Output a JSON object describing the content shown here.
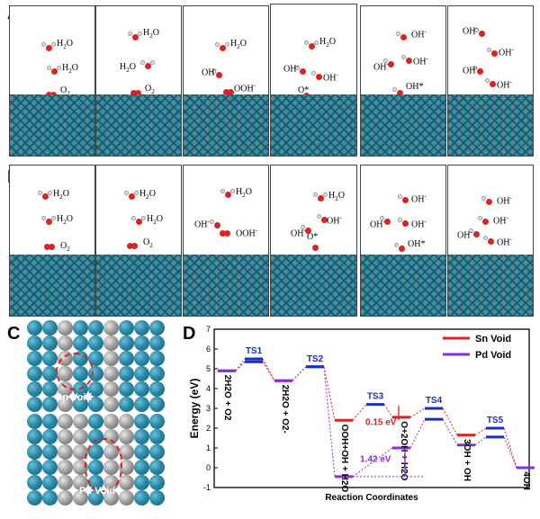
{
  "panels": {
    "a": "A",
    "b": "B",
    "c": "C",
    "d": "D"
  },
  "row_a": [
    {
      "labels": [
        "H2O",
        "H2O",
        "O2"
      ]
    },
    {
      "labels": [
        "H2O",
        "H2O",
        "O2"
      ]
    },
    {
      "labels": [
        "H2O",
        "OH-",
        "OOH-"
      ]
    },
    {
      "labels": [
        "H2O",
        "OH-",
        "OH-",
        "O*"
      ]
    },
    {
      "labels": [
        "OH-",
        "OH-",
        "OH-",
        "OH*"
      ]
    },
    {
      "labels": [
        "OH-",
        "OH-",
        "OH-",
        "OH-"
      ]
    }
  ],
  "row_b": [
    {
      "labels": [
        "H2O",
        "H2O",
        "O2"
      ]
    },
    {
      "labels": [
        "H2O",
        "H2O",
        "O2"
      ]
    },
    {
      "labels": [
        "H2O",
        "OH-",
        "OOH-"
      ]
    },
    {
      "labels": [
        "H2O",
        "OH-",
        "OH-",
        "O*"
      ]
    },
    {
      "labels": [
        "OH-",
        "OH-",
        "OH-",
        "OH*"
      ]
    },
    {
      "labels": [
        "OH-",
        "OH-",
        "OH-",
        "OH-"
      ]
    }
  ],
  "panel_c": {
    "sn_label": "Sn Void",
    "pd_label": "Pd Void"
  },
  "chart_data": {
    "type": "line",
    "ylabel": "Energy (eV)",
    "xlabel": "Reaction Coordinates",
    "ylim": [
      -1,
      7
    ],
    "yticks": [
      -1,
      0,
      1,
      2,
      3,
      4,
      5,
      6,
      7
    ],
    "legend_position": "top-right",
    "series": [
      {
        "name": "Sn Void",
        "color": "#e02020",
        "levels": [
          4.9,
          5.5,
          4.4,
          5.1,
          2.4,
          3.2,
          2.55,
          3.0,
          1.65,
          2.0,
          0.0
        ]
      },
      {
        "name": "Pd Void",
        "color": "#8a2be2",
        "levels": [
          4.9,
          5.35,
          4.4,
          5.1,
          -0.45,
          null,
          1.0,
          2.45,
          1.15,
          1.55,
          0.0
        ]
      }
    ],
    "ts_labels": [
      "TS1",
      "TS2",
      "TS3",
      "TS4",
      "TS5"
    ],
    "state_labels": [
      "2H2O + O2",
      "2H2O + O2-",
      "OOH+OH + H2O",
      "O+2OH + H2O",
      "3OH + OH",
      "4OH"
    ],
    "annotations": [
      "0.15 eV",
      "1.42 eV"
    ]
  }
}
